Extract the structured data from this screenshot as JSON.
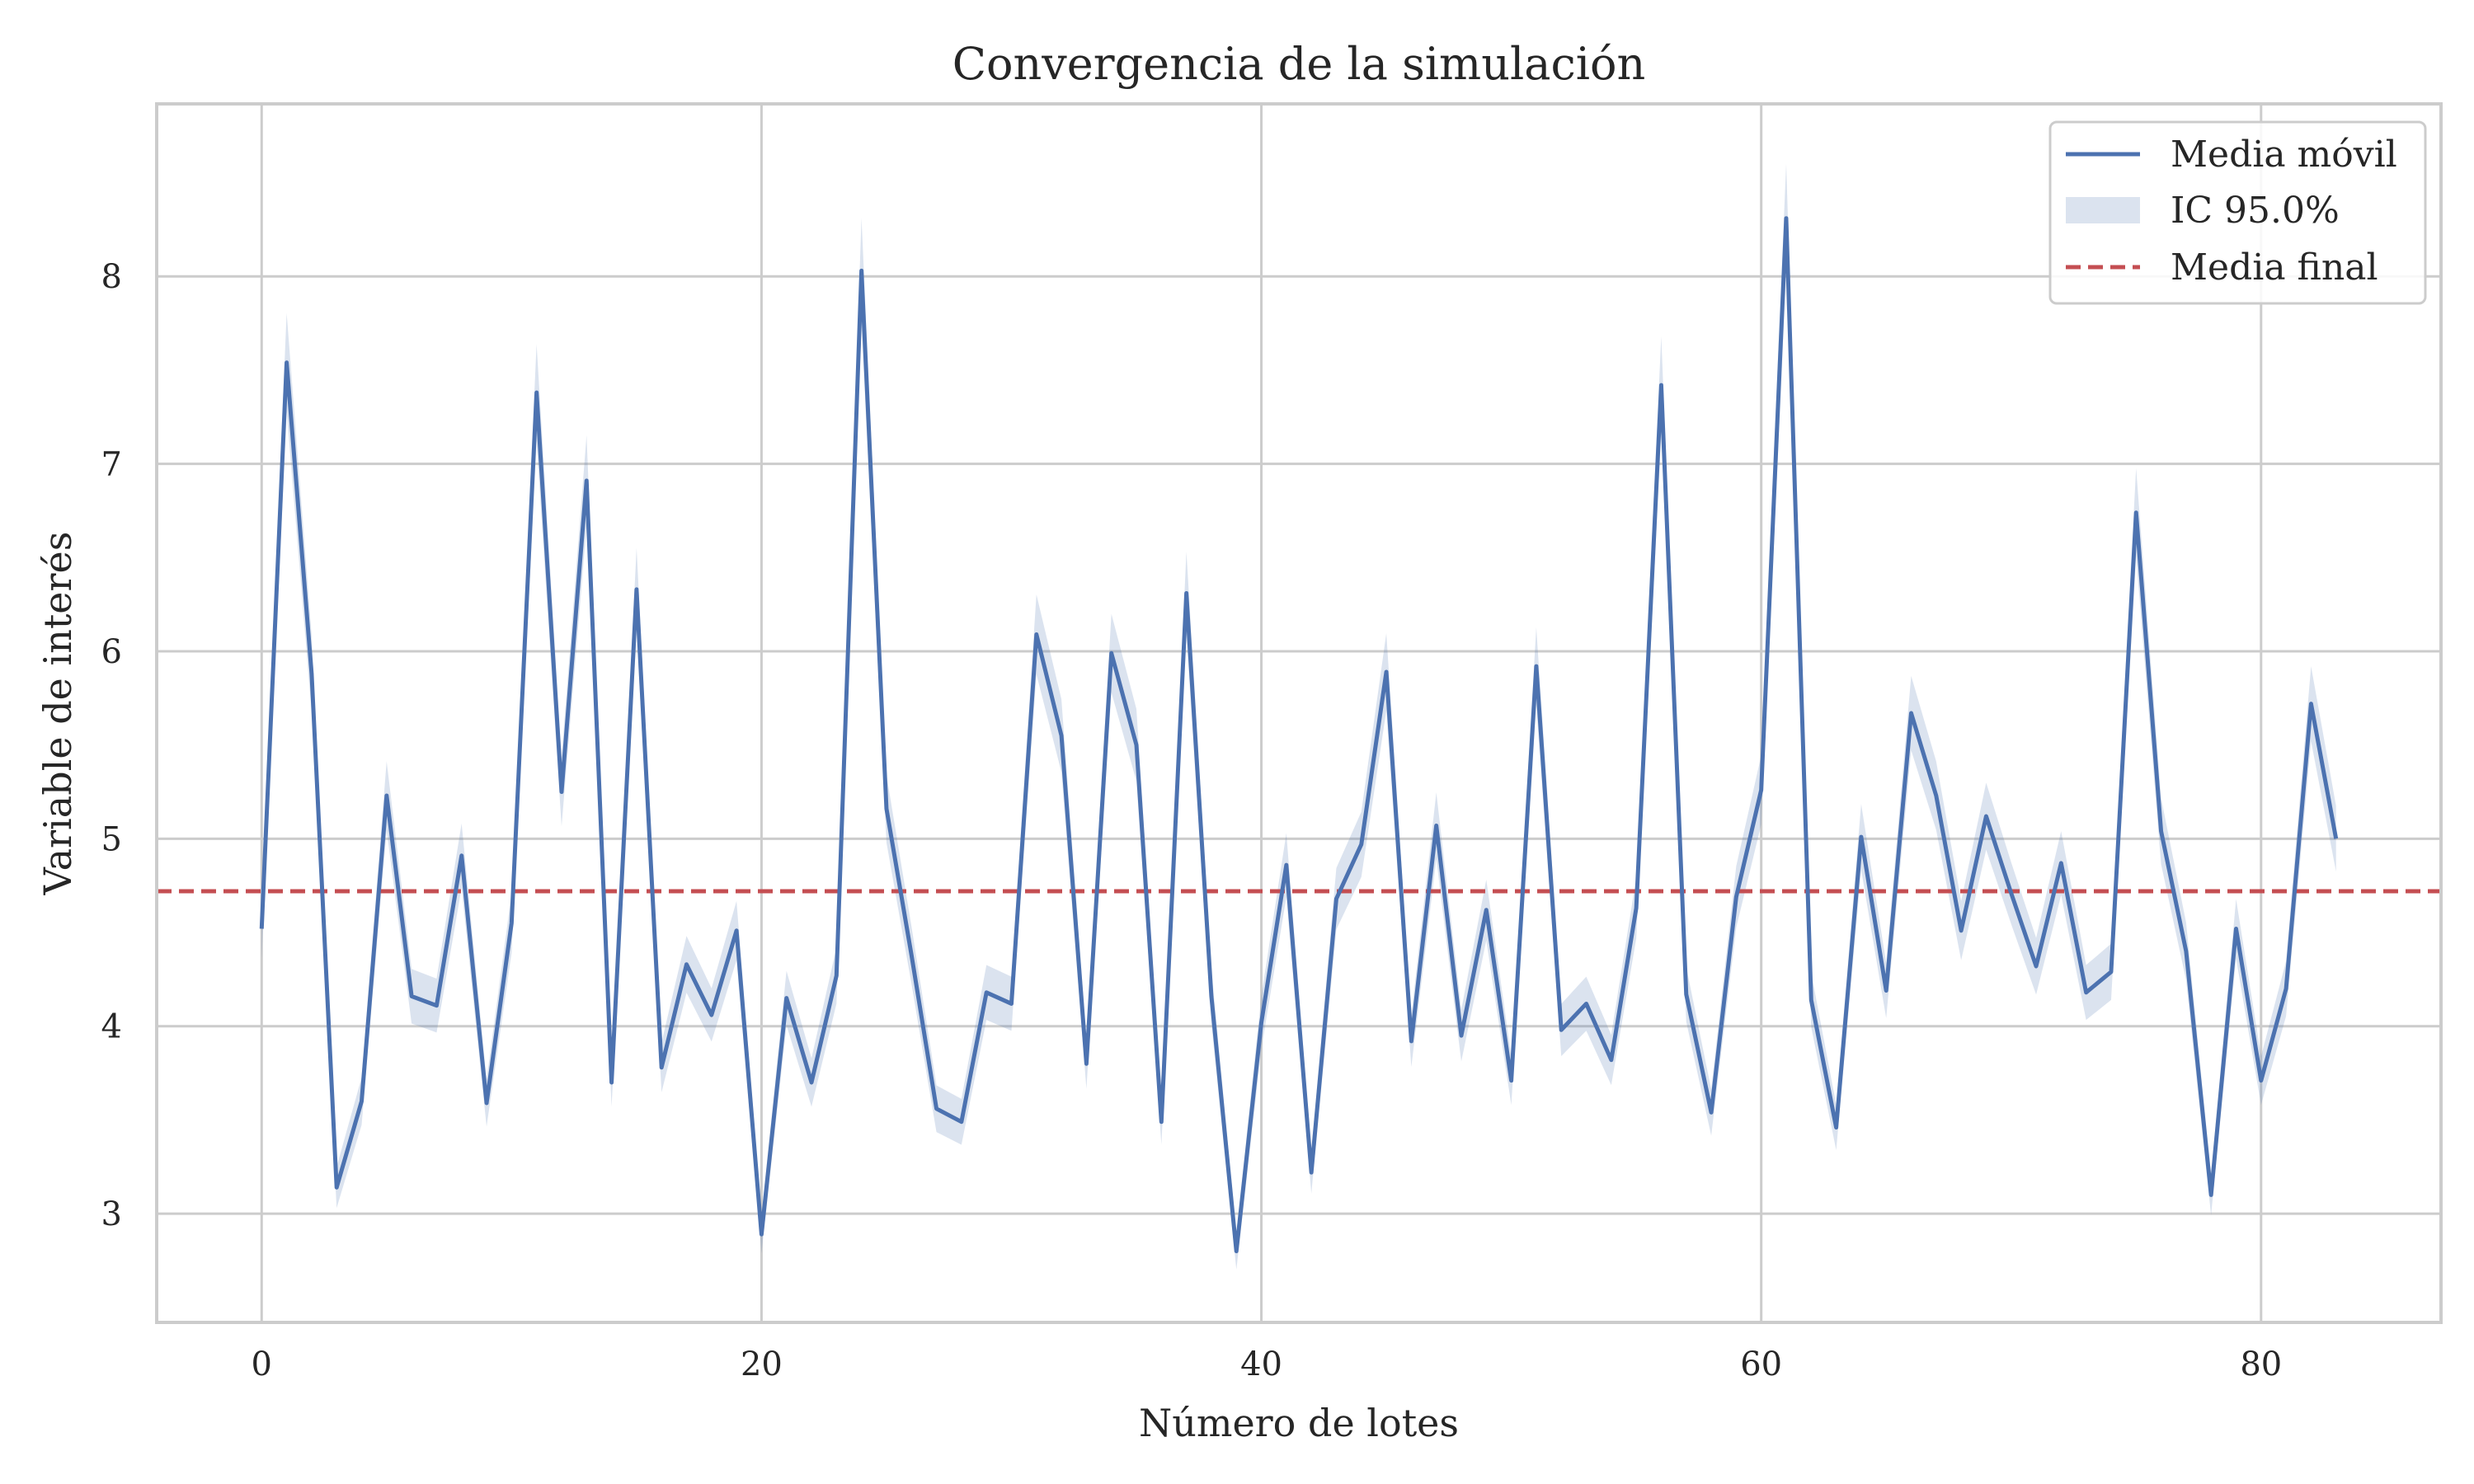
{
  "chart_data": {
    "type": "line",
    "title": "Convergencia de la simulación",
    "xlabel": "Número de lotes",
    "ylabel": "Variable de interés",
    "xlim": [
      -4.2,
      87.2
    ],
    "ylim": [
      2.42,
      8.92
    ],
    "xticks": [
      0,
      20,
      40,
      60,
      80
    ],
    "yticks": [
      3,
      4,
      5,
      6,
      7,
      8
    ],
    "grid": true,
    "legend_position": "top-right",
    "series": [
      {
        "name": "Media móvil",
        "color": "#4c72b0",
        "x": [
          0,
          1,
          2,
          3,
          4,
          5,
          6,
          7,
          8,
          9,
          10,
          11,
          12,
          13,
          14,
          15,
          16,
          17,
          18,
          19,
          20,
          21,
          22,
          23,
          24,
          25,
          26,
          27,
          28,
          29,
          30,
          31,
          32,
          33,
          34,
          35,
          36,
          37,
          38,
          39,
          40,
          41,
          42,
          43,
          44,
          45,
          46,
          47,
          48,
          49,
          50,
          51,
          52,
          53,
          54,
          55,
          56,
          57,
          58,
          59,
          60,
          61,
          62,
          63,
          64,
          65,
          66,
          67,
          68,
          69,
          70,
          71,
          72,
          73,
          74,
          75,
          76,
          77,
          78,
          79,
          80,
          81,
          82,
          83
        ],
        "values": [
          4.52,
          7.54,
          5.88,
          3.14,
          3.6,
          5.23,
          4.16,
          4.11,
          4.91,
          3.59,
          4.55,
          7.38,
          5.25,
          6.91,
          3.7,
          6.33,
          3.78,
          4.33,
          4.06,
          4.51,
          2.89,
          4.15,
          3.7,
          4.27,
          8.03,
          5.16,
          4.38,
          3.56,
          3.49,
          4.18,
          4.12,
          6.09,
          5.55,
          3.8,
          5.99,
          5.5,
          3.49,
          6.31,
          4.16,
          2.8,
          4.02,
          4.86,
          3.22,
          4.68,
          4.97,
          5.89,
          3.92,
          5.07,
          3.95,
          4.62,
          3.71,
          5.92,
          3.98,
          4.12,
          3.82,
          4.63,
          7.42,
          4.17,
          3.54,
          4.69,
          5.26,
          8.31,
          4.14,
          3.46,
          5.01,
          4.19,
          5.67,
          5.23,
          4.51,
          5.12,
          4.71,
          4.32,
          4.87,
          4.18,
          4.29,
          6.74,
          5.04,
          4.4,
          3.1,
          4.52,
          3.71,
          4.2,
          5.72,
          5.0
        ]
      },
      {
        "name": "IC 95.0%",
        "type": "band",
        "color": "#4c72b0",
        "opacity": 0.2,
        "half_width_fraction": 0.035
      },
      {
        "name": "Media final",
        "type": "hline",
        "value": 4.72,
        "color": "#c44e52",
        "dash": true
      }
    ]
  }
}
